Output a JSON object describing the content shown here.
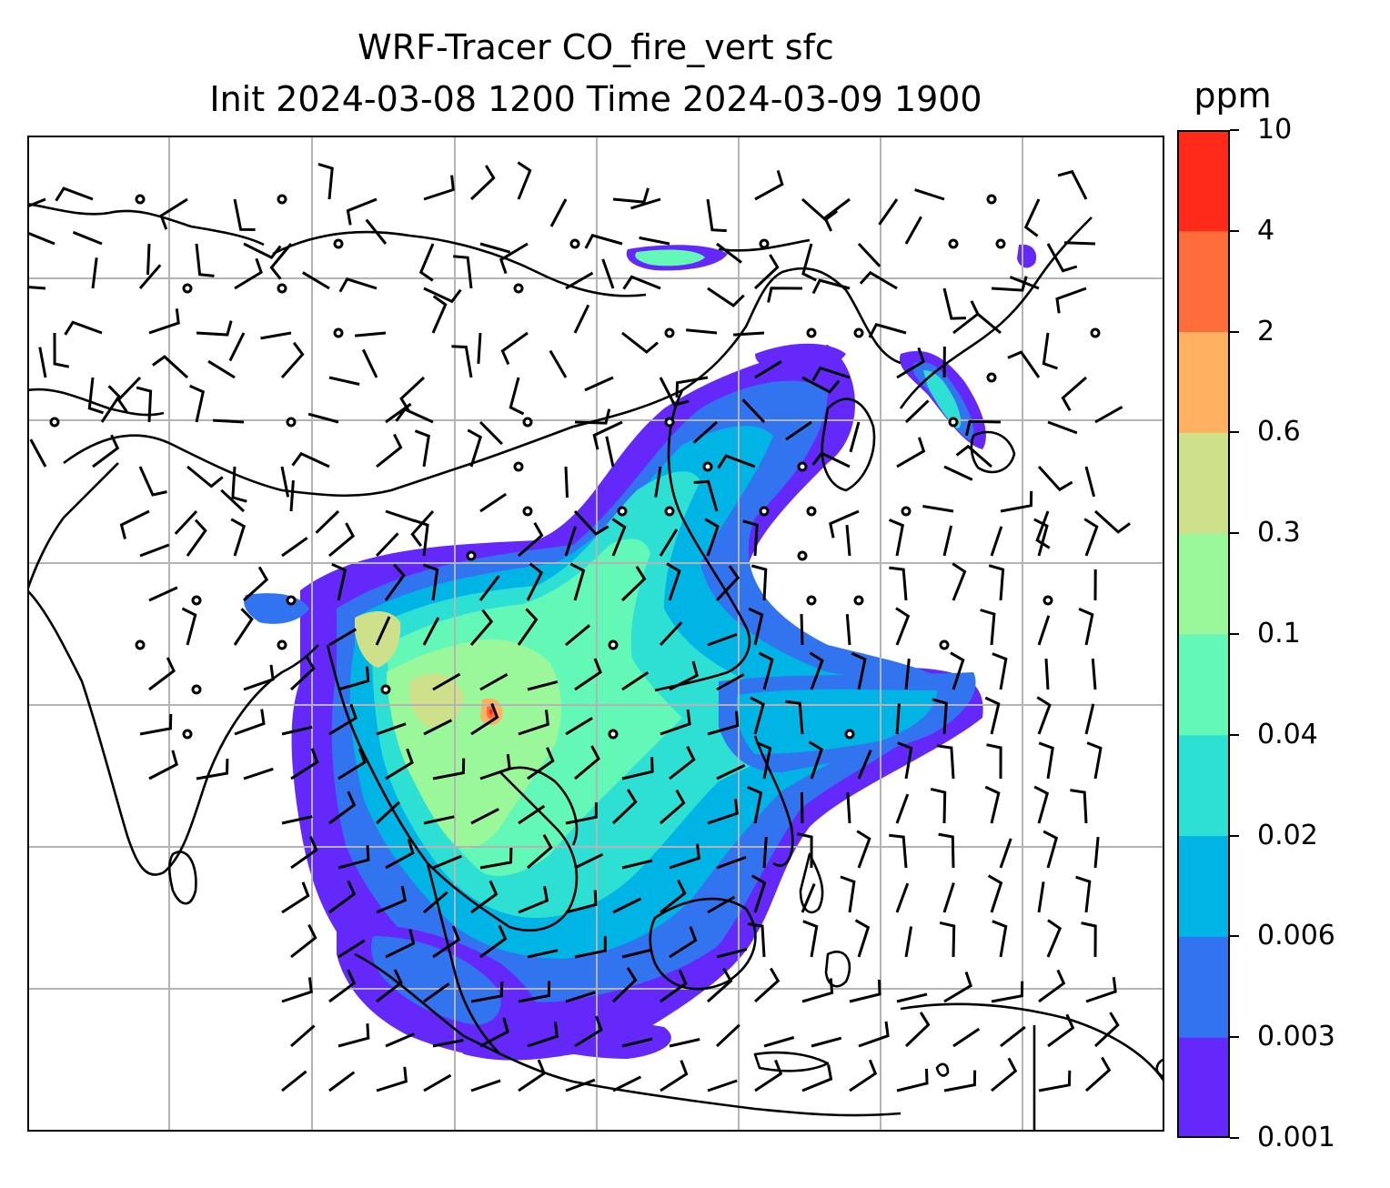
{
  "title": {
    "line1": "WRF-Tracer CO_fire_vert sfc",
    "line2": "Init 2024-03-08 1200 Time 2024-03-09 1900"
  },
  "colorbar": {
    "unit": "ppm",
    "levels": [
      "0.001",
      "0.003",
      "0.006",
      "0.02",
      "0.04",
      "0.1",
      "0.3",
      "0.6",
      "2",
      "4",
      "10"
    ],
    "colors": [
      "#6428fa",
      "#3274f0",
      "#00b4e6",
      "#2ee0d4",
      "#64f8b8",
      "#9af89a",
      "#cfe08a",
      "#ffb060",
      "#ff6e3a",
      "#ff2a1a"
    ]
  },
  "map": {
    "gridlines": true,
    "wind_barbs": true,
    "coastlines": true
  }
}
